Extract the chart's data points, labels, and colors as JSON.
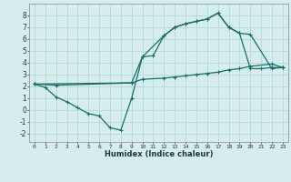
{
  "title": "",
  "xlabel": "Humidex (Indice chaleur)",
  "ylabel": "",
  "bg_color": "#d5eeed",
  "grid_color": "#b8d8d5",
  "line_color": "#1a6e68",
  "xlim": [
    -0.5,
    23.5
  ],
  "ylim": [
    -2.7,
    9.0
  ],
  "xticks": [
    0,
    1,
    2,
    3,
    4,
    5,
    6,
    7,
    8,
    9,
    10,
    11,
    12,
    13,
    14,
    15,
    16,
    17,
    18,
    19,
    20,
    21,
    22,
    23
  ],
  "yticks": [
    -2,
    -1,
    0,
    1,
    2,
    3,
    4,
    5,
    6,
    7,
    8
  ],
  "line1_x": [
    0,
    1,
    2,
    3,
    4,
    5,
    6,
    7,
    8,
    9,
    10,
    11,
    12,
    13,
    14,
    15,
    16,
    17,
    18,
    19,
    20,
    21,
    22,
    23
  ],
  "line1_y": [
    2.2,
    1.9,
    1.1,
    0.7,
    0.2,
    -0.3,
    -0.5,
    -1.5,
    -1.7,
    1.0,
    4.5,
    4.6,
    6.3,
    7.0,
    7.3,
    7.5,
    7.7,
    8.2,
    7.0,
    6.5,
    3.5,
    3.5,
    3.6,
    3.6
  ],
  "line2_x": [
    0,
    2,
    9,
    10,
    12,
    13,
    14,
    15,
    16,
    17,
    18,
    19,
    20,
    22,
    23
  ],
  "line2_y": [
    2.2,
    2.1,
    2.3,
    2.6,
    2.7,
    2.8,
    2.9,
    3.0,
    3.1,
    3.2,
    3.4,
    3.5,
    3.7,
    3.9,
    3.6
  ],
  "line3_x": [
    0,
    9,
    10,
    12,
    13,
    14,
    15,
    16,
    17,
    18,
    19,
    20,
    22,
    23
  ],
  "line3_y": [
    2.2,
    2.3,
    4.5,
    6.3,
    7.0,
    7.3,
    7.5,
    7.7,
    8.2,
    7.0,
    6.5,
    6.4,
    3.5,
    3.6
  ]
}
